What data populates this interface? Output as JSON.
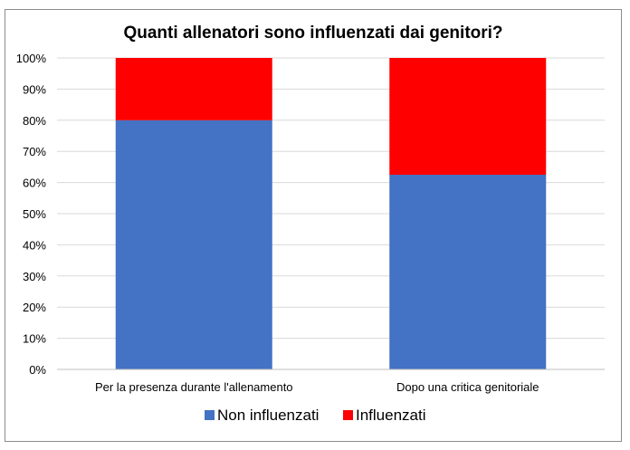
{
  "chart_data": {
    "type": "bar",
    "stacked": true,
    "title": "Quanti allenatori sono influenzati dai genitori?",
    "categories": [
      "Per la presenza durante l'allenamento",
      "Dopo una critica genitoriale"
    ],
    "series": [
      {
        "name": "Non influenzati",
        "color": "#4472C4",
        "values": [
          80,
          62.5
        ]
      },
      {
        "name": "Influenzati",
        "color": "#FF0000",
        "values": [
          20,
          37.5
        ]
      }
    ],
    "yticks": [
      "0%",
      "10%",
      "20%",
      "30%",
      "40%",
      "50%",
      "60%",
      "70%",
      "80%",
      "90%",
      "100%"
    ],
    "ylim": [
      0,
      100
    ],
    "grid": true,
    "legend": "bottom"
  }
}
